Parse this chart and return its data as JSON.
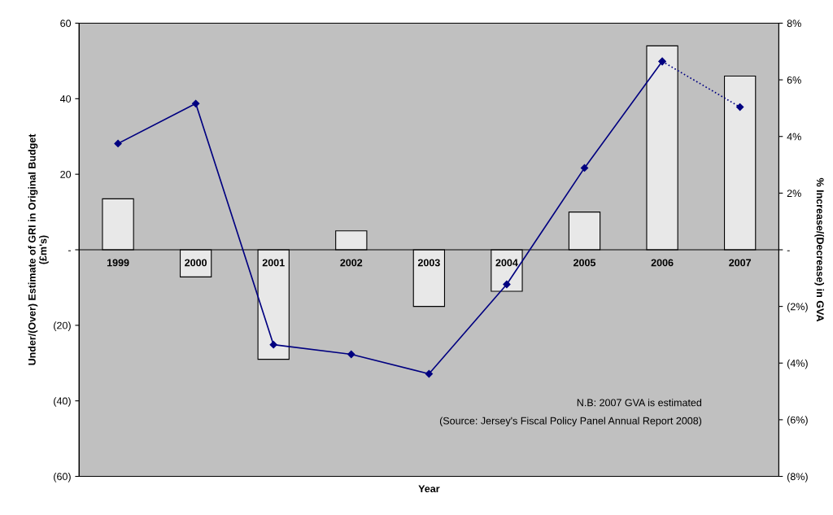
{
  "chart_data": {
    "type": "bar",
    "xlabel": "Year",
    "ylabel": "Under/(Over) Estimate of GRI in Original Budget\n(£m's)",
    "y2label": "% Increase/(Decrease) in GVA",
    "categories": [
      "1999",
      "2000",
      "2001",
      "2002",
      "2003",
      "2004",
      "2005",
      "2006",
      "2007"
    ],
    "series": [
      {
        "color": "#e8e8e8",
        "values": [
          13.5,
          -7.2,
          -29,
          5,
          -15,
          -11,
          10,
          54,
          46
        ]
      },
      {
        "type": "line",
        "axis": "y2",
        "color": "#000080",
        "marker": "diamond",
        "line_style": "solid",
        "values": [
          3.75,
          5.16,
          -3.35,
          -3.69,
          -4.38,
          -1.22,
          2.89,
          6.65,
          null
        ]
      },
      {
        "type": "line",
        "axis": "y2",
        "color": "#000080",
        "marker": "diamond",
        "line_style": "dotted",
        "values": [
          null,
          null,
          null,
          null,
          null,
          null,
          null,
          6.65,
          5.04
        ]
      }
    ],
    "ylim": [
      -60,
      60
    ],
    "yticks": [
      60,
      40,
      20,
      {
        "value": 0,
        "label": "-"
      },
      {
        "value": -20,
        "label": "(20)"
      },
      {
        "value": -40,
        "label": "(40)"
      },
      {
        "value": -60,
        "label": "(60)"
      }
    ],
    "y2lim": [
      -8,
      8
    ],
    "y2ticks": [
      {
        "value": 8,
        "label": "8%"
      },
      {
        "value": 6,
        "label": "6%"
      },
      {
        "value": 4,
        "label": "4%"
      },
      {
        "value": 2,
        "label": "2%"
      },
      {
        "value": 0,
        "label": "-"
      },
      {
        "value": -2,
        "label": "(2%)"
      },
      {
        "value": -4,
        "label": "(4%)"
      },
      {
        "value": -6,
        "label": "(6%)"
      },
      {
        "value": -8,
        "label": "(8%)"
      }
    ],
    "annotations": [
      "N.B: 2007 GVA is estimated",
      "(Source: Jersey's Fiscal Policy Panel Annual Report 2008)"
    ],
    "grid": false,
    "legend": false
  }
}
